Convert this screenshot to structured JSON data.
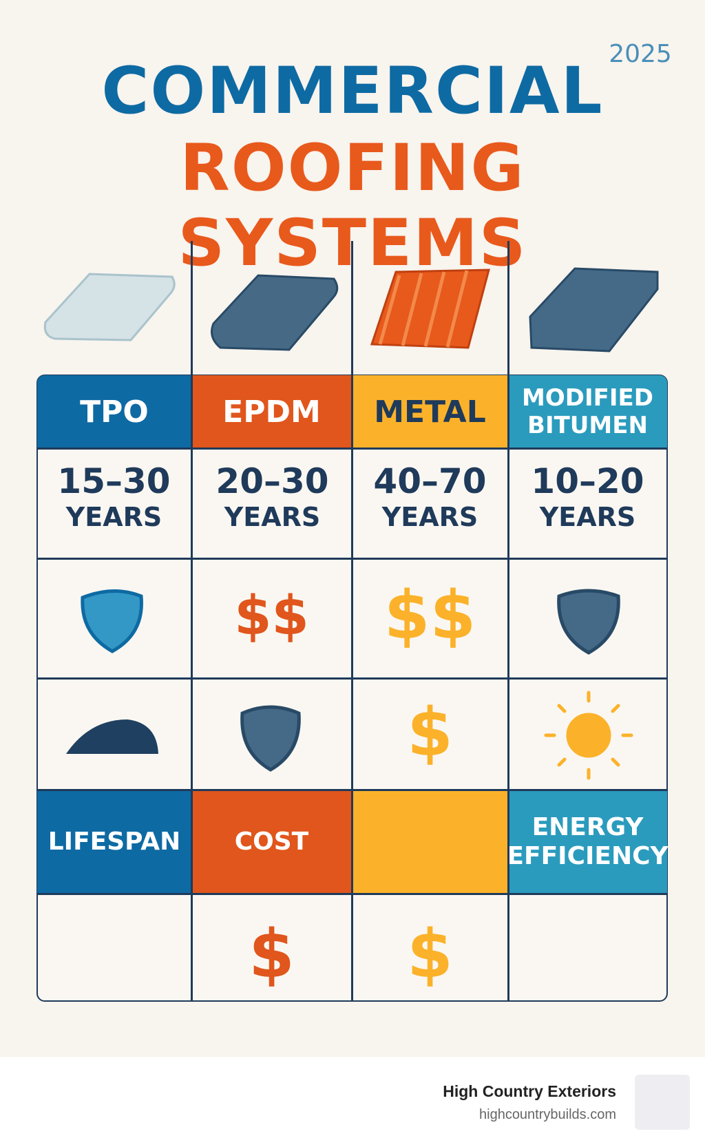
{
  "header": {
    "year": "2025",
    "title_line1": "COMMERCIAL",
    "title_line2": "ROOFING SYSTEMS"
  },
  "table": {
    "columns": [
      "TPO",
      "EPDM",
      "METAL",
      "MODIFIED BITUMEN"
    ],
    "lifespans": [
      {
        "range": "15–30",
        "unit": "YEARS"
      },
      {
        "range": "20–30",
        "unit": "YEARS"
      },
      {
        "range": "40–70",
        "unit": "YEARS"
      },
      {
        "range": "10–20",
        "unit": "YEARS"
      }
    ],
    "row_symbols_1": [
      "$$",
      "$$"
    ],
    "row_symbols_2": [
      "$"
    ],
    "row_labels": [
      "LIFESPAN",
      "COST",
      "ENERGY EFFICIENCY"
    ],
    "bottom_symbols": [
      "$",
      "$"
    ]
  },
  "footer": {
    "brand": "High Country Exteriors",
    "url": "highcountrybuilds.com"
  }
}
